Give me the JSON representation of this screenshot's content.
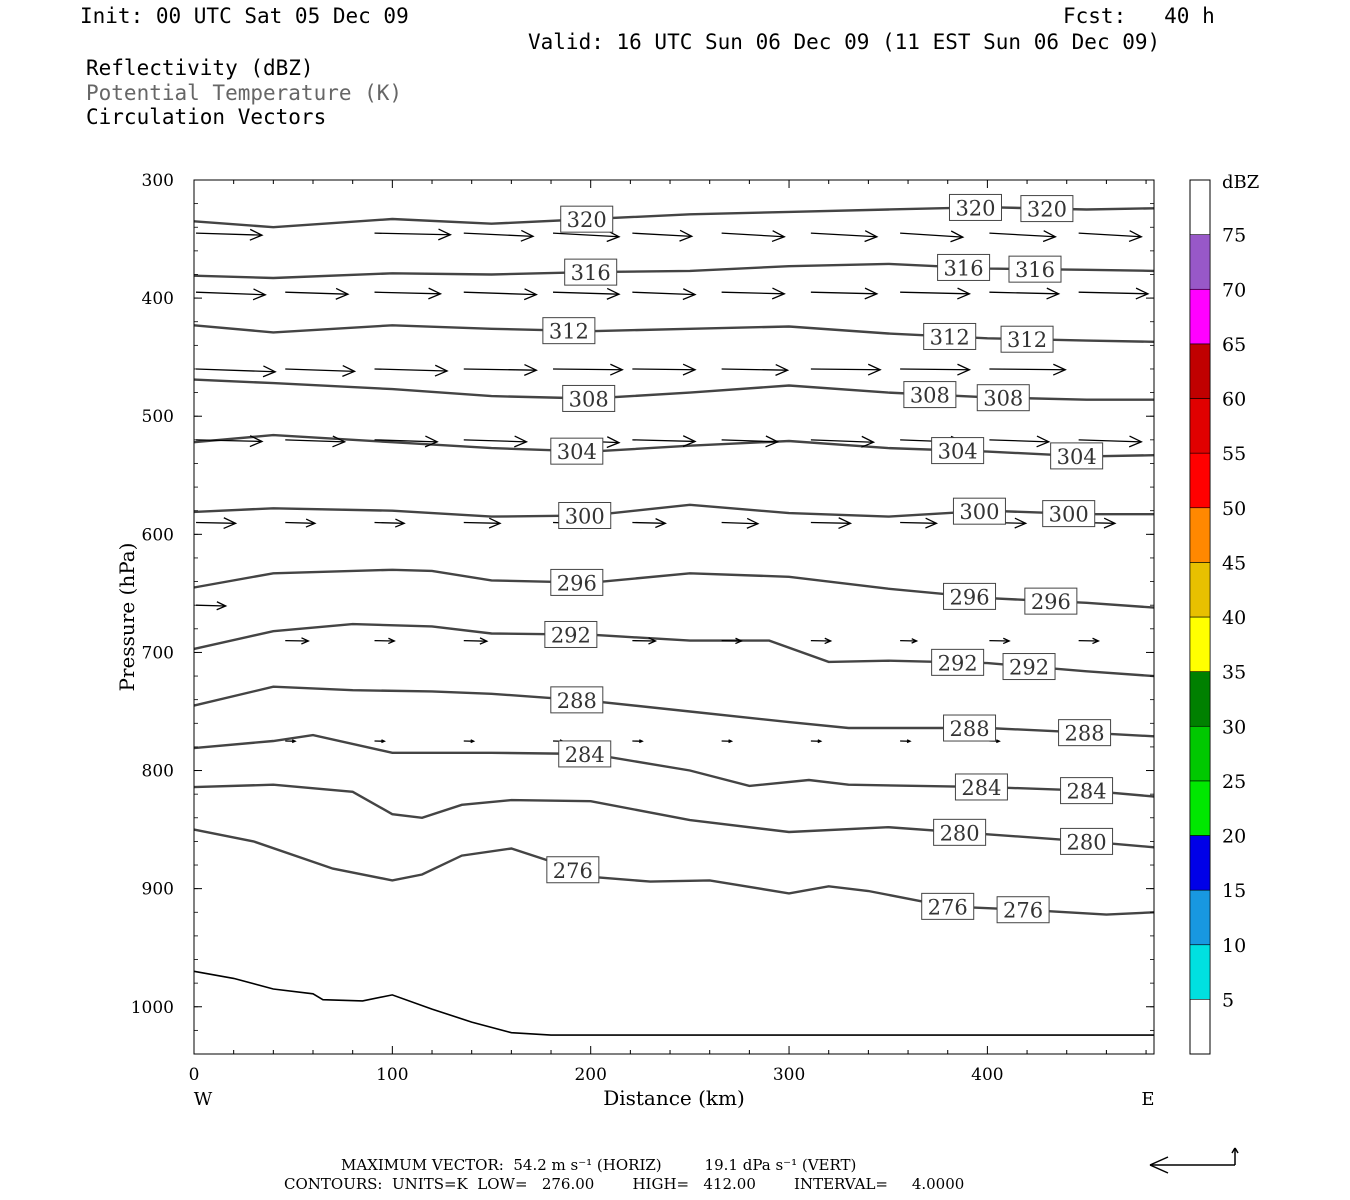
{
  "header": {
    "init": "Init: 00 UTC Sat 05 Dec 09",
    "fcst": "Fcst:   40 h",
    "valid": "Valid: 16 UTC Sun 06 Dec 09 (11 EST Sun 06 Dec 09)",
    "field1": "Reflectivity (dBZ)",
    "field2": "Potential Temperature (K)",
    "field3": "Circulation Vectors"
  },
  "footer": {
    "line1": "MAXIMUM VECTOR:  54.2 m s⁻¹ (HORIZ)         19.1 dPa s⁻¹ (VERT)",
    "line2": "CONTOURS:  UNITS=K  LOW=   276.00        HIGH=   412.00        INTERVAL=     4.0000"
  },
  "colorbar": {
    "unit": "dBZ",
    "levels": [
      5,
      10,
      15,
      20,
      25,
      30,
      35,
      40,
      45,
      50,
      55,
      60,
      65,
      70,
      75
    ],
    "colors": [
      "#00e0e0",
      "#1898e0",
      "#0000e8",
      "#00e800",
      "#00c800",
      "#008000",
      "#ffff00",
      "#e8c000",
      "#ff8800",
      "#ff0000",
      "#e00000",
      "#c00000",
      "#ff00ff",
      "#9858c8"
    ]
  },
  "chart_data": {
    "type": "line",
    "xlabel": "Distance (km)",
    "ylabel": "Pressure (hPa)",
    "xlim": [
      0,
      484
    ],
    "ylim": [
      300,
      1040
    ],
    "y_inverted": true,
    "x_ticks": [
      0,
      100,
      200,
      300,
      400
    ],
    "y_ticks": [
      300,
      400,
      500,
      600,
      700,
      800,
      900,
      1000
    ],
    "x_end_labels": {
      "left": "W",
      "right": "E"
    },
    "contours": [
      {
        "theta": "320",
        "label_x": [
          198,
          394,
          430
        ],
        "points": [
          [
            0,
            335
          ],
          [
            40,
            340
          ],
          [
            100,
            333
          ],
          [
            150,
            337
          ],
          [
            200,
            333
          ],
          [
            250,
            329
          ],
          [
            300,
            327
          ],
          [
            350,
            325
          ],
          [
            400,
            323
          ],
          [
            450,
            325
          ],
          [
            484,
            324
          ]
        ]
      },
      {
        "theta": "316",
        "label_x": [
          200,
          388,
          424
        ],
        "points": [
          [
            0,
            381
          ],
          [
            40,
            383
          ],
          [
            100,
            379
          ],
          [
            150,
            380
          ],
          [
            200,
            378
          ],
          [
            250,
            377
          ],
          [
            300,
            373
          ],
          [
            350,
            371
          ],
          [
            400,
            375
          ],
          [
            450,
            376
          ],
          [
            484,
            377
          ]
        ]
      },
      {
        "theta": "312",
        "label_x": [
          189,
          381,
          420
        ],
        "points": [
          [
            0,
            423
          ],
          [
            40,
            429
          ],
          [
            100,
            423
          ],
          [
            150,
            426
          ],
          [
            200,
            428
          ],
          [
            250,
            426
          ],
          [
            300,
            424
          ],
          [
            350,
            430
          ],
          [
            400,
            434
          ],
          [
            450,
            436
          ],
          [
            484,
            437
          ]
        ]
      },
      {
        "theta": "308",
        "label_x": [
          199,
          371,
          408
        ],
        "points": [
          [
            0,
            469
          ],
          [
            40,
            472
          ],
          [
            100,
            477
          ],
          [
            150,
            483
          ],
          [
            200,
            485
          ],
          [
            250,
            480
          ],
          [
            300,
            474
          ],
          [
            350,
            480
          ],
          [
            400,
            484
          ],
          [
            450,
            486
          ],
          [
            484,
            486
          ]
        ]
      },
      {
        "theta": "304",
        "label_x": [
          193,
          385,
          445
        ],
        "points": [
          [
            0,
            522
          ],
          [
            40,
            516
          ],
          [
            100,
            522
          ],
          [
            150,
            527
          ],
          [
            200,
            530
          ],
          [
            250,
            525
          ],
          [
            300,
            521
          ],
          [
            350,
            527
          ],
          [
            400,
            530
          ],
          [
            450,
            534
          ],
          [
            484,
            533
          ]
        ]
      },
      {
        "theta": "300",
        "label_x": [
          197,
          396,
          441
        ],
        "points": [
          [
            0,
            581
          ],
          [
            40,
            578
          ],
          [
            100,
            580
          ],
          [
            150,
            585
          ],
          [
            200,
            584
          ],
          [
            250,
            575
          ],
          [
            300,
            582
          ],
          [
            350,
            585
          ],
          [
            400,
            580
          ],
          [
            450,
            583
          ],
          [
            484,
            583
          ]
        ]
      },
      {
        "theta": "296",
        "label_x": [
          193,
          391,
          432
        ],
        "points": [
          [
            0,
            645
          ],
          [
            40,
            633
          ],
          [
            100,
            630
          ],
          [
            120,
            631
          ],
          [
            150,
            639
          ],
          [
            200,
            641
          ],
          [
            250,
            633
          ],
          [
            300,
            636
          ],
          [
            350,
            646
          ],
          [
            400,
            654
          ],
          [
            450,
            658
          ],
          [
            484,
            662
          ]
        ]
      },
      {
        "theta": "292",
        "label_x": [
          190,
          385,
          421
        ],
        "points": [
          [
            0,
            697
          ],
          [
            40,
            682
          ],
          [
            80,
            676
          ],
          [
            120,
            678
          ],
          [
            150,
            684
          ],
          [
            200,
            685
          ],
          [
            250,
            690
          ],
          [
            290,
            690
          ],
          [
            320,
            708
          ],
          [
            350,
            707
          ],
          [
            400,
            709
          ],
          [
            450,
            716
          ],
          [
            484,
            720
          ]
        ]
      },
      {
        "theta": "288",
        "label_x": [
          193,
          391,
          449
        ],
        "points": [
          [
            0,
            745
          ],
          [
            40,
            729
          ],
          [
            80,
            732
          ],
          [
            120,
            733
          ],
          [
            150,
            735
          ],
          [
            200,
            741
          ],
          [
            250,
            750
          ],
          [
            300,
            759
          ],
          [
            330,
            764
          ],
          [
            400,
            764
          ],
          [
            450,
            768
          ],
          [
            484,
            771
          ]
        ]
      },
      {
        "theta": "284",
        "label_x": [
          197,
          397,
          450
        ],
        "points": [
          [
            0,
            781
          ],
          [
            40,
            775
          ],
          [
            60,
            770
          ],
          [
            100,
            785
          ],
          [
            150,
            785
          ],
          [
            200,
            786
          ],
          [
            250,
            800
          ],
          [
            280,
            813
          ],
          [
            310,
            808
          ],
          [
            330,
            812
          ],
          [
            400,
            814
          ],
          [
            450,
            817
          ],
          [
            484,
            822
          ]
        ]
      },
      {
        "theta": "280",
        "label_x": [
          386,
          450
        ],
        "points": [
          [
            0,
            814
          ],
          [
            40,
            812
          ],
          [
            80,
            818
          ],
          [
            100,
            837
          ],
          [
            115,
            840
          ],
          [
            135,
            829
          ],
          [
            160,
            825
          ],
          [
            200,
            826
          ],
          [
            250,
            842
          ],
          [
            300,
            852
          ],
          [
            350,
            848
          ],
          [
            400,
            854
          ],
          [
            450,
            860
          ],
          [
            484,
            865
          ]
        ]
      },
      {
        "theta": "276",
        "label_x": [
          191,
          380,
          418
        ],
        "points": [
          [
            0,
            850
          ],
          [
            30,
            860
          ],
          [
            70,
            883
          ],
          [
            100,
            893
          ],
          [
            115,
            888
          ],
          [
            135,
            872
          ],
          [
            160,
            866
          ],
          [
            182,
            878
          ],
          [
            200,
            890
          ],
          [
            230,
            894
          ],
          [
            260,
            893
          ],
          [
            300,
            904
          ],
          [
            320,
            898
          ],
          [
            340,
            902
          ],
          [
            380,
            915
          ],
          [
            420,
            918
          ],
          [
            460,
            922
          ],
          [
            484,
            920
          ]
        ]
      }
    ],
    "terrain": {
      "points": [
        [
          0,
          970
        ],
        [
          20,
          976
        ],
        [
          40,
          985
        ],
        [
          60,
          989
        ],
        [
          65,
          994
        ],
        [
          85,
          995
        ],
        [
          100,
          990
        ],
        [
          120,
          1002
        ],
        [
          140,
          1013
        ],
        [
          160,
          1022
        ],
        [
          180,
          1024
        ],
        [
          200,
          1024
        ],
        [
          250,
          1024
        ],
        [
          300,
          1024
        ],
        [
          350,
          1024
        ],
        [
          400,
          1024
        ],
        [
          484,
          1024
        ]
      ]
    },
    "vectors": [
      {
        "row": 345,
        "items": [
          [
            0,
            -25,
            20
          ],
          [
            90,
            -20,
            23
          ],
          [
            135,
            -40,
            21
          ],
          [
            180,
            -45,
            20
          ],
          [
            220,
            -40,
            18
          ],
          [
            265,
            -45,
            19
          ],
          [
            310,
            -45,
            20
          ],
          [
            355,
            -50,
            19
          ],
          [
            400,
            -45,
            20
          ],
          [
            445,
            -45,
            19
          ]
        ]
      },
      {
        "row": 395,
        "items": [
          [
            0,
            -32,
            21
          ],
          [
            45,
            -25,
            19
          ],
          [
            90,
            -20,
            20
          ],
          [
            135,
            -30,
            22
          ],
          [
            180,
            -25,
            20
          ],
          [
            220,
            -30,
            19
          ],
          [
            265,
            -20,
            19
          ],
          [
            310,
            -20,
            20
          ],
          [
            355,
            -20,
            21
          ],
          [
            400,
            -20,
            21
          ],
          [
            445,
            -20,
            21
          ]
        ]
      },
      {
        "row": 460,
        "items": [
          [
            0,
            -35,
            24
          ],
          [
            45,
            -30,
            21
          ],
          [
            90,
            -25,
            22
          ],
          [
            135,
            -15,
            22
          ],
          [
            180,
            -10,
            21
          ],
          [
            220,
            -10,
            19
          ],
          [
            265,
            -15,
            20
          ],
          [
            310,
            -10,
            21
          ],
          [
            355,
            -10,
            21
          ],
          [
            400,
            -10,
            23
          ]
        ]
      },
      {
        "row": 520,
        "items": [
          [
            0,
            -20,
            20
          ],
          [
            45,
            -25,
            18
          ],
          [
            90,
            -25,
            19
          ],
          [
            135,
            -25,
            19
          ],
          [
            180,
            -35,
            20
          ],
          [
            220,
            -20,
            19
          ],
          [
            265,
            -25,
            17
          ],
          [
            310,
            -30,
            19
          ],
          [
            355,
            -30,
            19
          ],
          [
            400,
            -25,
            18
          ],
          [
            445,
            -25,
            19
          ]
        ]
      },
      {
        "row": 590,
        "items": [
          [
            0,
            -10,
            12
          ],
          [
            45,
            -10,
            9
          ],
          [
            90,
            -10,
            9
          ],
          [
            135,
            -10,
            11
          ],
          [
            180,
            -15,
            12
          ],
          [
            220,
            -10,
            10
          ],
          [
            265,
            -15,
            11
          ],
          [
            310,
            -10,
            12
          ],
          [
            355,
            -10,
            11
          ],
          [
            400,
            -10,
            11
          ],
          [
            445,
            -10,
            11
          ]
        ]
      },
      {
        "row": 660,
        "items": [
          [
            0,
            -10,
            9
          ]
        ]
      },
      {
        "row": 690,
        "items": [
          [
            45,
            -5,
            7
          ],
          [
            90,
            -5,
            6
          ],
          [
            135,
            -7,
            7
          ],
          [
            180,
            -5,
            8
          ],
          [
            220,
            -5,
            7
          ],
          [
            265,
            -5,
            6
          ],
          [
            310,
            -5,
            6
          ],
          [
            355,
            -5,
            5
          ],
          [
            400,
            -5,
            6
          ],
          [
            445,
            -5,
            6
          ]
        ]
      },
      {
        "row": 775,
        "items": [
          [
            45,
            -3,
            3
          ],
          [
            90,
            -3,
            3
          ],
          [
            135,
            -3,
            3
          ],
          [
            180,
            -3,
            3
          ],
          [
            220,
            -3,
            3
          ],
          [
            265,
            -3,
            3
          ],
          [
            310,
            -3,
            3
          ],
          [
            355,
            -3,
            3
          ],
          [
            400,
            -3,
            3
          ],
          [
            445,
            -3,
            3
          ]
        ]
      }
    ],
    "colorbar_title": "dBZ"
  }
}
